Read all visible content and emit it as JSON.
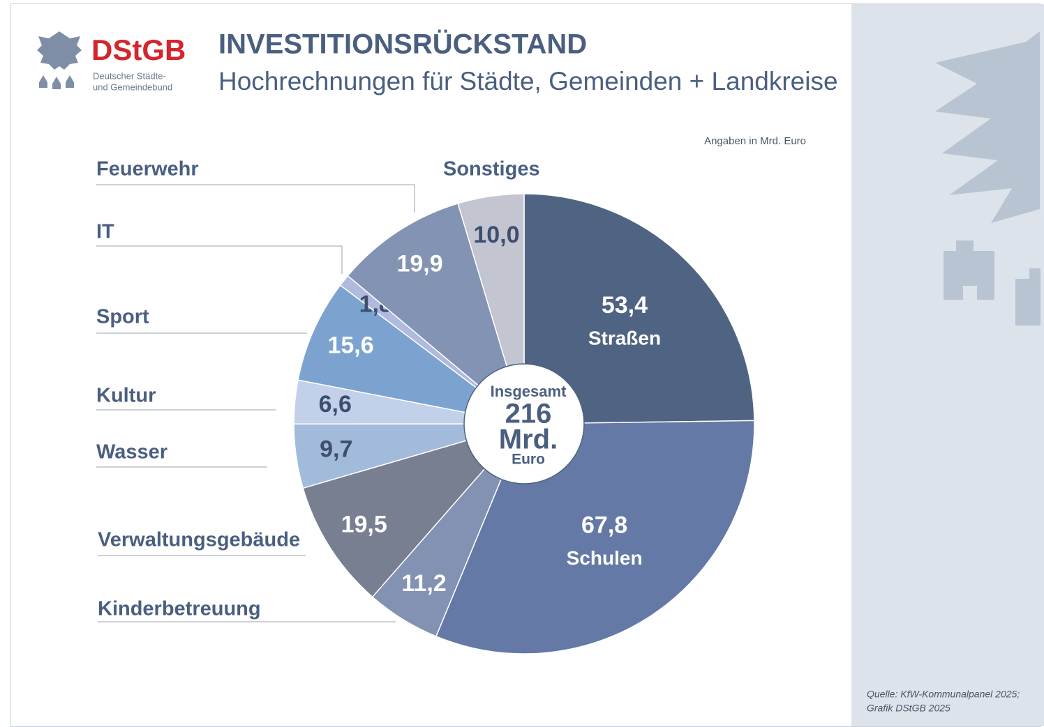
{
  "chart_data": {
    "type": "pie",
    "logo": {
      "name": "DStGB",
      "line1": "Deutscher Städte-",
      "line2": "und Gemeindebund"
    },
    "title": "INVESTITIONSRÜCKSTAND",
    "subtitle": "Hochrechnungen für Städte, Gemeinden + Landkreise",
    "unit_note": "Angaben in Mrd. Euro",
    "categories": [
      "Straßen",
      "Schulen",
      "Kinderbetreuung",
      "Verwaltungsgebäude",
      "Wasser",
      "Kultur",
      "Sport",
      "IT",
      "Feuerwehr",
      "Sonstiges"
    ],
    "values": [
      53.4,
      67.8,
      11.2,
      19.5,
      9.7,
      6.6,
      15.6,
      1.8,
      19.9,
      10.0
    ],
    "value_labels": [
      "53,4",
      "67,8",
      "11,2",
      "19,5",
      "9,7",
      "6,6",
      "15,6",
      "1,8",
      "19,9",
      "10,0"
    ],
    "colors": [
      "#4f6382",
      "#6479a6",
      "#8391b3",
      "#777f91",
      "#a3bbdb",
      "#c2d0ea",
      "#7ca3d0",
      "#b0b9de",
      "#8393b3",
      "#c3c5d0"
    ],
    "center_label": {
      "line1": "Insgesamt",
      "line2": "216",
      "line3": "Mrd.",
      "line4": "Euro"
    },
    "source": {
      "line1": "Quelle: KfW-Kommunalpanel 2025;",
      "line2": "Grafik DStGB 2025"
    }
  }
}
